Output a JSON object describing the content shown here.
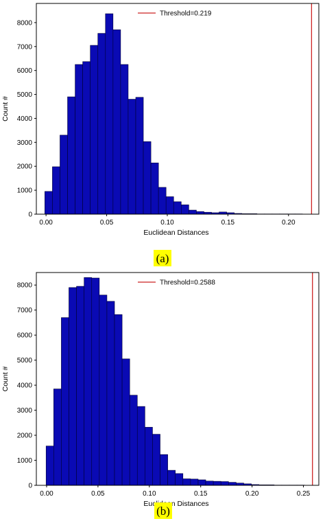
{
  "chart_data": [
    {
      "type": "bar",
      "panel": "a",
      "caption": "(a)",
      "xlabel": "Euclidean Distances",
      "ylabel": "Count #",
      "xlim": [
        -0.008,
        0.225
      ],
      "ylim": [
        0,
        8800
      ],
      "bin_width": 0.00625,
      "bin_start": -0.001,
      "values": [
        950,
        1980,
        3300,
        4900,
        6250,
        6370,
        7050,
        7550,
        8370,
        7700,
        6250,
        4800,
        4880,
        3030,
        2140,
        1120,
        730,
        520,
        390,
        170,
        110,
        80,
        60,
        90,
        60,
        30,
        20,
        20,
        10,
        10,
        10,
        10,
        10,
        10,
        0
      ],
      "xticks": [
        0.0,
        0.05,
        0.1,
        0.15,
        0.2
      ],
      "xtick_labels": [
        "0.00",
        "0.05",
        "0.10",
        "0.15",
        "0.20"
      ],
      "yticks": [
        0,
        1000,
        2000,
        3000,
        4000,
        5000,
        6000,
        7000,
        8000
      ],
      "ytick_labels": [
        "0",
        "1000",
        "2000",
        "3000",
        "4000",
        "5000",
        "6000",
        "7000",
        "8000"
      ],
      "threshold": 0.219,
      "legend": "Threshold=0.219",
      "legend_position": "top-right",
      "bar_color": "#0a0ab4",
      "threshold_color": "#cc2222",
      "caption_highlight": "#ffff00"
    },
    {
      "type": "bar",
      "panel": "b",
      "caption": "(b)",
      "xlabel": "Euclidean Distances",
      "ylabel": "Count #",
      "xlim": [
        -0.01,
        0.265
      ],
      "ylim": [
        0,
        8500
      ],
      "bin_width": 0.0074,
      "bin_start": -0.0005,
      "values": [
        1570,
        3850,
        6700,
        7900,
        7950,
        8300,
        8280,
        7600,
        7350,
        6820,
        5050,
        3600,
        3150,
        2320,
        2040,
        1230,
        600,
        470,
        260,
        250,
        220,
        170,
        160,
        150,
        120,
        90,
        60,
        30,
        20,
        20,
        10,
        10,
        10,
        10,
        0
      ],
      "xticks": [
        0.0,
        0.05,
        0.1,
        0.15,
        0.2,
        0.25
      ],
      "xtick_labels": [
        "0.00",
        "0.05",
        "0.10",
        "0.15",
        "0.20",
        "0.25"
      ],
      "yticks": [
        0,
        1000,
        2000,
        3000,
        4000,
        5000,
        6000,
        7000,
        8000
      ],
      "ytick_labels": [
        "0",
        "1000",
        "2000",
        "3000",
        "4000",
        "5000",
        "6000",
        "7000",
        "8000"
      ],
      "threshold": 0.2588,
      "legend": "Threshold=0.2588",
      "legend_position": "top-right",
      "bar_color": "#0a0ab4",
      "threshold_color": "#cc2222",
      "caption_highlight": "#ffff00"
    }
  ]
}
